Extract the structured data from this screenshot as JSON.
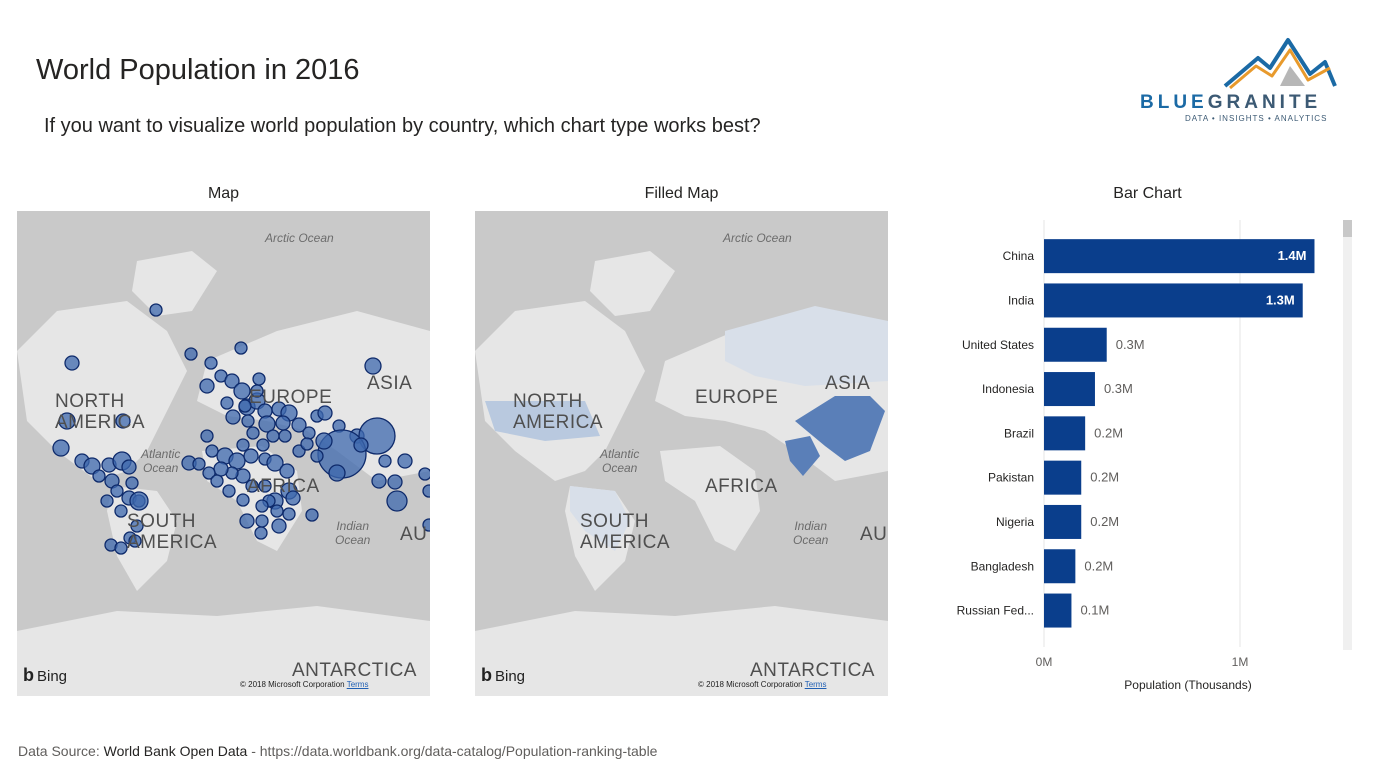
{
  "header": {
    "title": "World Population in 2016",
    "subtitle": "If you want to visualize world population by country, which chart type works best?"
  },
  "logo": {
    "blue": "BLUE",
    "granite": "GRANITE",
    "tagline": "DATA • INSIGHTS • ANALYTICS"
  },
  "panels": {
    "map_title": "Map",
    "filled_map_title": "Filled Map",
    "bar_chart_title": "Bar Chart"
  },
  "map_labels": {
    "arctic": "Arctic Ocean",
    "north_america_1": "NORTH",
    "north_america_2": "AMERICA",
    "europe": "EUROPE",
    "asia": "ASIA",
    "africa": "AFRICA",
    "south_america_1": "SOUTH",
    "south_america_2": "AMERICA",
    "atlantic_1": "Atlantic",
    "atlantic_2": "Ocean",
    "indian_1": "Indian",
    "indian_2": "Ocean",
    "antarctica": "ANTARCTICA",
    "australia": "AU"
  },
  "map_attrib": {
    "bing": "Bing",
    "copyright": "© 2018 Microsoft Corporation",
    "terms": "Terms"
  },
  "colors": {
    "bar": "#0a3e8c",
    "bubble_fill": "#3e68ad",
    "bubble_stroke": "#0e2a6b",
    "filled_dark": "#5a7fb8",
    "filled_light": "#c5cfdc"
  },
  "chart_data": {
    "type": "bar",
    "orientation": "horizontal",
    "categories": [
      "China",
      "India",
      "United States",
      "Indonesia",
      "Brazil",
      "Pakistan",
      "Nigeria",
      "Bangladesh",
      "Russian Fed..."
    ],
    "values": [
      1.38,
      1.32,
      0.32,
      0.26,
      0.21,
      0.19,
      0.19,
      0.16,
      0.14
    ],
    "data_labels": [
      "1.4M",
      "1.3M",
      "0.3M",
      "0.3M",
      "0.2M",
      "0.2M",
      "0.2M",
      "0.2M",
      "0.1M"
    ],
    "xticks": [
      "0M",
      "1M"
    ],
    "xlim": [
      0,
      1.5
    ],
    "xlabel": "Population (Thousands)",
    "grid": true
  },
  "footer": {
    "prefix": "Data Source: ",
    "source": "World Bank Open Data",
    "rest": " - https://data.worldbank.org/data-catalog/Population-ranking-table"
  }
}
